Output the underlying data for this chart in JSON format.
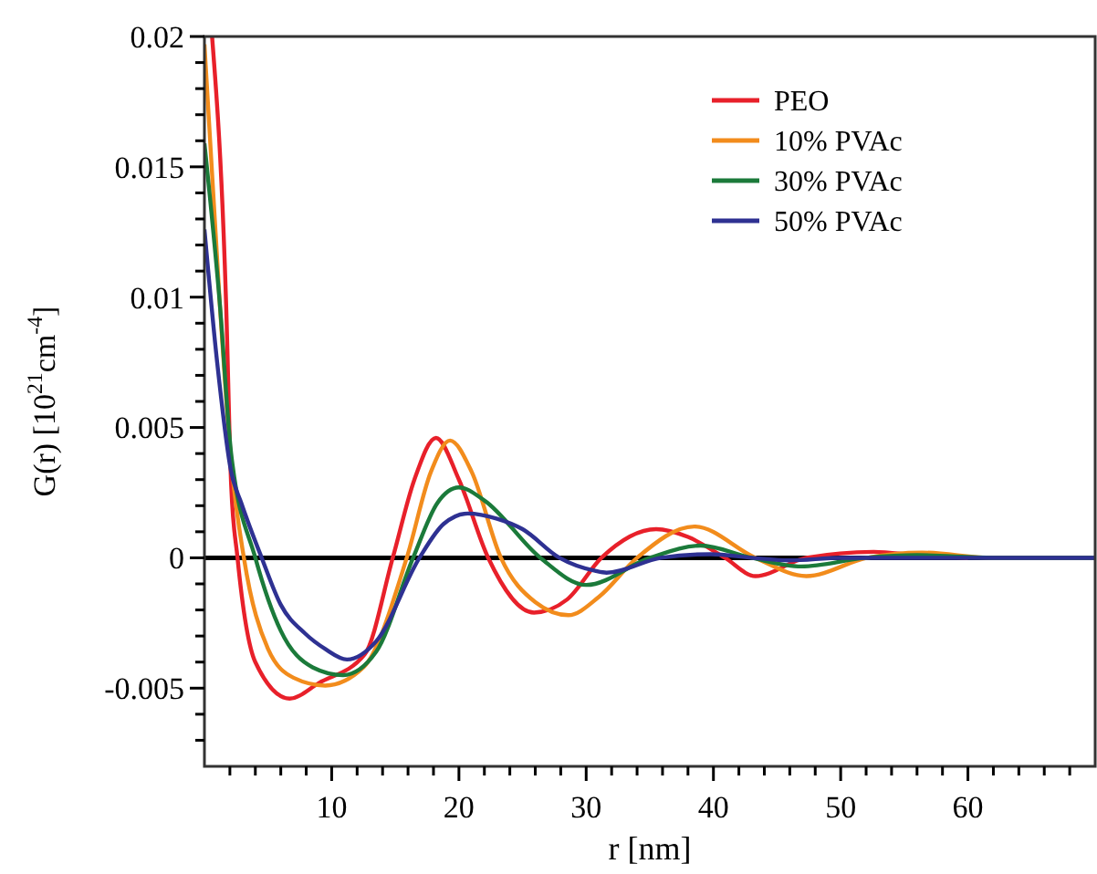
{
  "chart_data": {
    "type": "line",
    "xlabel": "r [nm]",
    "ylabel": "G(r) [10$^{21}$cm$^{-4}$]",
    "xlim": [
      0,
      70
    ],
    "ylim": [
      -0.008,
      0.02
    ],
    "xticks": [
      {
        "value": 2,
        "label": null
      },
      {
        "value": 4,
        "label": null
      },
      {
        "value": 6,
        "label": null
      },
      {
        "value": 8,
        "label": null
      },
      10,
      {
        "value": 12,
        "label": null
      },
      {
        "value": 14,
        "label": null
      },
      {
        "value": 16,
        "label": null
      },
      {
        "value": 18,
        "label": null
      },
      20,
      {
        "value": 22,
        "label": null
      },
      {
        "value": 24,
        "label": null
      },
      {
        "value": 26,
        "label": null
      },
      {
        "value": 28,
        "label": null
      },
      30,
      {
        "value": 32,
        "label": null
      },
      {
        "value": 34,
        "label": null
      },
      {
        "value": 36,
        "label": null
      },
      {
        "value": 38,
        "label": null
      },
      40,
      {
        "value": 42,
        "label": null
      },
      {
        "value": 44,
        "label": null
      },
      {
        "value": 46,
        "label": null
      },
      {
        "value": 48,
        "label": null
      },
      50,
      {
        "value": 52,
        "label": null
      },
      {
        "value": 54,
        "label": null
      },
      {
        "value": 56,
        "label": null
      },
      {
        "value": 58,
        "label": null
      },
      60,
      {
        "value": 62,
        "label": null
      },
      {
        "value": 64,
        "label": null
      },
      {
        "value": 66,
        "label": null
      },
      {
        "value": 68,
        "label": null
      }
    ],
    "yticks": [
      {
        "value": -0.007,
        "label": null
      },
      {
        "value": -0.006,
        "label": null
      },
      -0.005,
      {
        "value": -0.004,
        "label": null
      },
      {
        "value": -0.003,
        "label": null
      },
      {
        "value": -0.002,
        "label": null
      },
      {
        "value": -0.001,
        "label": null
      },
      0,
      {
        "value": 0.001,
        "label": null
      },
      {
        "value": 0.002,
        "label": null
      },
      {
        "value": 0.003,
        "label": null
      },
      {
        "value": 0.004,
        "label": null
      },
      0.005,
      {
        "value": 0.006,
        "label": null
      },
      {
        "value": 0.007,
        "label": null
      },
      {
        "value": 0.008,
        "label": null
      },
      {
        "value": 0.009,
        "label": null
      },
      0.01,
      {
        "value": 0.011,
        "label": null
      },
      {
        "value": 0.012,
        "label": null
      },
      {
        "value": 0.013,
        "label": null
      },
      {
        "value": 0.014,
        "label": null
      },
      0.015,
      {
        "value": 0.016,
        "label": null
      },
      {
        "value": 0.017,
        "label": null
      },
      {
        "value": 0.018,
        "label": null
      },
      {
        "value": 0.019,
        "label": null
      },
      0.02
    ],
    "grid": false,
    "legend": "top right",
    "line_style": "solid",
    "marker": "none",
    "ref_lines": [
      {
        "axis": "y",
        "value": 0,
        "color": "#000000"
      }
    ],
    "series": [
      {
        "name": "PEO",
        "color": "#e8202a",
        "x": [
          0.6,
          1.7,
          2.1,
          2.6,
          4,
          6.7,
          9,
          12.6,
          14.8,
          16.5,
          18.2,
          20,
          22.3,
          25.9,
          28.5,
          31.2,
          35.5,
          38,
          40.9,
          43.3,
          47.3,
          52.6,
          56,
          60
        ],
        "values": [
          0.02,
          0.0098,
          0.0028,
          0,
          -0.004,
          -0.0054,
          -0.0048,
          -0.0037,
          0,
          0.003,
          0.0046,
          0.003,
          0,
          -0.0021,
          -0.0016,
          0,
          0.0011,
          0.0008,
          0,
          -0.0007,
          0,
          0.00023,
          0.0001,
          0
        ]
      },
      {
        "name": "10% PVAc",
        "color": "#f28c1c",
        "x": [
          0,
          1.2,
          2.1,
          3.1,
          5,
          7,
          9.5,
          12.5,
          15.9,
          17.8,
          19.3,
          21,
          23.3,
          26,
          28.6,
          31,
          34,
          38.5,
          43.3,
          47.3,
          52.1,
          56.4,
          62,
          66,
          70
        ],
        "values": [
          0.0197,
          0.0098,
          0.0037,
          0,
          -0.0035,
          -0.0046,
          -0.0049,
          -0.0042,
          0,
          0.0033,
          0.0045,
          0.0033,
          0,
          -0.0017,
          -0.0022,
          -0.0015,
          0,
          0.0012,
          0,
          -0.0007,
          0,
          0.0002,
          0,
          0,
          0
        ]
      },
      {
        "name": "30% PVAc",
        "color": "#1b7a3a",
        "x": [
          0,
          1.2,
          2.1,
          4,
          6,
          8.5,
          10.9,
          13.5,
          16.4,
          18.3,
          20,
          22,
          26.4,
          30,
          35,
          39,
          43,
          46.9,
          52,
          56,
          62,
          66,
          70
        ],
        "values": [
          0.0159,
          0.0098,
          0.004,
          0,
          -0.0028,
          -0.0042,
          -0.0045,
          -0.0036,
          0,
          0.0021,
          0.0027,
          0.0022,
          0,
          -0.00104,
          0,
          0.00047,
          0,
          -0.00033,
          0,
          0.0001,
          0,
          0,
          0
        ]
      },
      {
        "name": "50% PVAc",
        "color": "#2e3192",
        "x": [
          0,
          1,
          2.1,
          2.9,
          4.5,
          6,
          7.9,
          9.5,
          11.2,
          13.5,
          16.9,
          18.8,
          20.7,
          23,
          25,
          27.9,
          30.7,
          31.6,
          35.9,
          39.8,
          43,
          46,
          50,
          56,
          62,
          66,
          70
        ],
        "values": [
          0.0126,
          0.0075,
          0.0033,
          0.0021,
          0,
          -0.0018,
          -0.0029,
          -0.0035,
          -0.0039,
          -0.0032,
          0,
          0.0013,
          0.0017,
          0.0015,
          0.0011,
          0,
          -0.0005,
          -0.00057,
          0,
          0.00014,
          0,
          -0.0001,
          0,
          0,
          0,
          0,
          0
        ]
      }
    ]
  }
}
